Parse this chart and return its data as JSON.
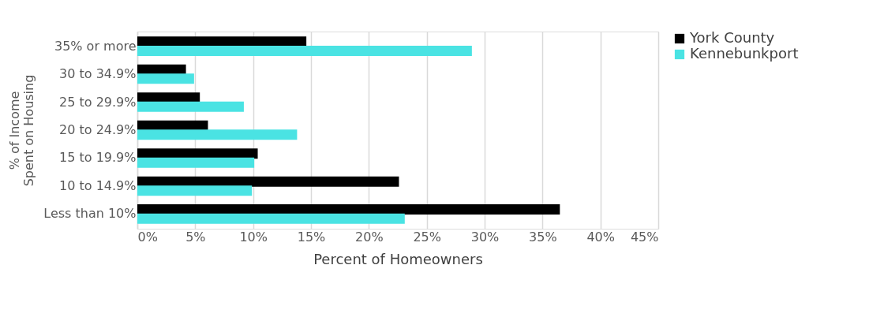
{
  "chart_data": {
    "type": "bar",
    "orientation": "horizontal",
    "categories": [
      "35% or more",
      "30 to 34.9%",
      "25 to 29.9%",
      "20 to 24.9%",
      "15 to 19.9%",
      "10 to 14.9%",
      "Less than 10%"
    ],
    "series": [
      {
        "name": "York County",
        "color": "#000000",
        "values": [
          14.6,
          4.2,
          5.4,
          6.1,
          10.4,
          22.6,
          36.5
        ]
      },
      {
        "name": "Kennebunkport",
        "color": "#4ae3e3",
        "values": [
          28.9,
          4.9,
          9.2,
          13.8,
          10.1,
          9.9,
          23.1
        ]
      }
    ],
    "xlim": [
      0,
      45
    ],
    "xticks": [
      {
        "value": 0,
        "label": "0%"
      },
      {
        "value": 5,
        "label": "5%"
      },
      {
        "value": 10,
        "label": "10%"
      },
      {
        "value": 15,
        "label": "15%"
      },
      {
        "value": 20,
        "label": "20%"
      },
      {
        "value": 25,
        "label": "25%"
      },
      {
        "value": 30,
        "label": "30%"
      },
      {
        "value": 35,
        "label": "35%"
      },
      {
        "value": 40,
        "label": "40%"
      },
      {
        "value": 45,
        "label": "45%"
      }
    ],
    "xlabel": "Percent of Homeowners",
    "ylabel": "% of Income Spent on Housing",
    "grid": "x",
    "legend": "right"
  }
}
